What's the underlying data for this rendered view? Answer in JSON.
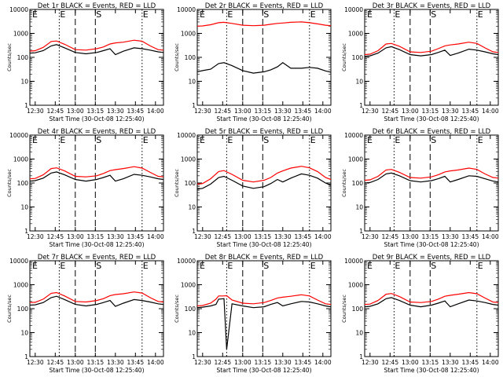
{
  "colors": {
    "events": "#000000",
    "lld": "#ff0000",
    "axes": "#000000",
    "background": "#ffffff"
  },
  "chart_data": [
    {
      "type": "line",
      "title": "Det 1r BLACK = Events, RED = LLD",
      "xlabel": "Start Time (30-Oct-08 12:25:40)",
      "ylabel": "Counts/sec",
      "yscale": "log",
      "ylim": [
        1,
        10000
      ],
      "x_ticks": [
        "12:30",
        "12:45",
        "13:00",
        "13:15",
        "13:30",
        "13:45",
        "14:00"
      ],
      "y_ticks": [
        "1",
        "10",
        "100",
        "1000",
        "10000"
      ],
      "markers": [
        {
          "label": "E",
          "style": "dotted"
        },
        {
          "label": "",
          "style": "dashed"
        },
        {
          "label": "S",
          "style": "dashed"
        },
        {
          "label": "E",
          "style": "dotted"
        }
      ],
      "x": [
        "12:26",
        "12:30",
        "12:36",
        "12:42",
        "12:46",
        "12:52",
        "13:00",
        "13:08",
        "13:16",
        "13:21",
        "13:26",
        "13:30",
        "13:36",
        "13:44",
        "13:50",
        "13:56",
        "14:02",
        "14:06"
      ],
      "series": [
        {
          "name": "BLACK = Events",
          "values": [
            150,
            155,
            190,
            300,
            340,
            250,
            160,
            140,
            160,
            190,
            230,
            130,
            180,
            250,
            230,
            200,
            170,
            160
          ]
        },
        {
          "name": "RED = LLD",
          "values": [
            180,
            190,
            260,
            460,
            480,
            350,
            210,
            200,
            230,
            270,
            360,
            400,
            430,
            520,
            470,
            300,
            210,
            200
          ]
        }
      ]
    },
    {
      "type": "line",
      "title": "Det 2r BLACK = Events, RED = LLD",
      "xlabel": "Start Time (30-Oct-08 12:25:40)",
      "ylabel": "Counts/sec",
      "yscale": "log",
      "ylim": [
        1,
        10000
      ],
      "x_ticks": [
        "12:30",
        "12:45",
        "13:00",
        "13:15",
        "13:30",
        "13:45",
        "14:00"
      ],
      "y_ticks": [
        "1",
        "10",
        "100",
        "1000",
        "10000"
      ],
      "markers": [
        {
          "label": "E",
          "style": "dotted"
        },
        {
          "label": "",
          "style": "dashed"
        },
        {
          "label": "S",
          "style": "dashed"
        },
        {
          "label": "E",
          "style": "dotted"
        }
      ],
      "x": [
        "12:26",
        "12:30",
        "12:36",
        "12:42",
        "12:46",
        "12:52",
        "13:00",
        "13:08",
        "13:16",
        "13:21",
        "13:26",
        "13:30",
        "13:36",
        "13:44",
        "13:50",
        "13:56",
        "14:02",
        "14:06"
      ],
      "series": [
        {
          "name": "BLACK = Events",
          "values": [
            25,
            28,
            32,
            55,
            60,
            45,
            28,
            22,
            25,
            30,
            40,
            60,
            35,
            35,
            38,
            35,
            27,
            24
          ]
        },
        {
          "name": "RED = LLD",
          "values": [
            2000,
            2050,
            2300,
            2800,
            2900,
            2600,
            2200,
            2100,
            2200,
            2400,
            2600,
            2700,
            2900,
            3000,
            2800,
            2500,
            2200,
            2100
          ]
        }
      ]
    },
    {
      "type": "line",
      "title": "Det 3r BLACK = Events, RED = LLD",
      "xlabel": "Start Time (30-Oct-08 12:25:40)",
      "ylabel": "Counts/sec",
      "yscale": "log",
      "ylim": [
        1,
        10000
      ],
      "x_ticks": [
        "12:30",
        "12:45",
        "13:00",
        "13:15",
        "13:30",
        "13:45",
        "14:00"
      ],
      "y_ticks": [
        "1",
        "10",
        "100",
        "1000",
        "10000"
      ],
      "markers": [
        {
          "label": "E",
          "style": "dotted"
        },
        {
          "label": "",
          "style": "dashed"
        },
        {
          "label": "S",
          "style": "dashed"
        },
        {
          "label": "E",
          "style": "dotted"
        }
      ],
      "x": [
        "12:26",
        "12:30",
        "12:36",
        "12:42",
        "12:46",
        "12:52",
        "13:00",
        "13:08",
        "13:16",
        "13:21",
        "13:26",
        "13:30",
        "13:36",
        "13:44",
        "13:50",
        "13:56",
        "14:02",
        "14:06"
      ],
      "series": [
        {
          "name": "BLACK = Events",
          "values": [
            110,
            115,
            150,
            250,
            280,
            210,
            130,
            115,
            130,
            160,
            200,
            120,
            150,
            220,
            200,
            170,
            140,
            130
          ]
        },
        {
          "name": "RED = LLD",
          "values": [
            130,
            135,
            190,
            360,
            380,
            290,
            170,
            160,
            180,
            230,
            300,
            330,
            360,
            430,
            380,
            250,
            170,
            160
          ]
        }
      ]
    },
    {
      "type": "line",
      "title": "Det 4r BLACK = Events, RED = LLD",
      "xlabel": "Start Time (30-Oct-08 12:25:40)",
      "ylabel": "Counts/sec",
      "yscale": "log",
      "ylim": [
        1,
        10000
      ],
      "x_ticks": [
        "12:30",
        "12:45",
        "13:00",
        "13:15",
        "13:30",
        "13:45",
        "14:00"
      ],
      "y_ticks": [
        "1",
        "10",
        "100",
        "1000",
        "10000"
      ],
      "markers": [
        {
          "label": "E",
          "style": "dotted"
        },
        {
          "label": "",
          "style": "dashed"
        },
        {
          "label": "S",
          "style": "dashed"
        },
        {
          "label": "E",
          "style": "dotted"
        }
      ],
      "x": [
        "12:26",
        "12:30",
        "12:36",
        "12:42",
        "12:46",
        "12:52",
        "13:00",
        "13:08",
        "13:16",
        "13:21",
        "13:26",
        "13:30",
        "13:36",
        "13:44",
        "13:50",
        "13:56",
        "14:02",
        "14:06"
      ],
      "series": [
        {
          "name": "BLACK = Events",
          "values": [
            120,
            125,
            160,
            260,
            290,
            220,
            140,
            120,
            140,
            170,
            210,
            120,
            150,
            230,
            210,
            180,
            150,
            140
          ]
        },
        {
          "name": "RED = LLD",
          "values": [
            150,
            155,
            220,
            400,
            430,
            320,
            190,
            180,
            200,
            250,
            330,
            360,
            400,
            480,
            420,
            280,
            190,
            180
          ]
        }
      ]
    },
    {
      "type": "line",
      "title": "Det 5r BLACK = Events, RED = LLD",
      "xlabel": "Start Time (30-Oct-08 12:25:40)",
      "ylabel": "Counts/sec",
      "yscale": "log",
      "ylim": [
        1,
        10000
      ],
      "x_ticks": [
        "12:30",
        "12:45",
        "13:00",
        "13:15",
        "13:30",
        "13:45",
        "14:00"
      ],
      "y_ticks": [
        "1",
        "10",
        "100",
        "1000",
        "10000"
      ],
      "markers": [
        {
          "label": "E",
          "style": "dotted"
        },
        {
          "label": "",
          "style": "dashed"
        },
        {
          "label": "S",
          "style": "dashed"
        },
        {
          "label": "E",
          "style": "dotted"
        }
      ],
      "x": [
        "12:26",
        "12:30",
        "12:36",
        "12:42",
        "12:46",
        "12:52",
        "13:00",
        "13:08",
        "13:16",
        "13:21",
        "13:26",
        "13:30",
        "13:36",
        "13:44",
        "13:50",
        "13:56",
        "14:02",
        "14:06"
      ],
      "series": [
        {
          "name": "BLACK = Events",
          "values": [
            55,
            60,
            90,
            170,
            190,
            130,
            75,
            60,
            70,
            95,
            140,
            110,
            160,
            240,
            210,
            160,
            100,
            80
          ]
        },
        {
          "name": "RED = LLD",
          "values": [
            90,
            95,
            150,
            300,
            330,
            230,
            130,
            110,
            130,
            170,
            260,
            320,
            420,
            500,
            430,
            300,
            170,
            140
          ]
        }
      ]
    },
    {
      "type": "line",
      "title": "Det 6r BLACK = Events, RED = LLD",
      "xlabel": "Start Time (30-Oct-08 12:25:40)",
      "ylabel": "Counts/sec",
      "yscale": "log",
      "ylim": [
        1,
        10000
      ],
      "x_ticks": [
        "12:30",
        "12:45",
        "13:00",
        "13:15",
        "13:30",
        "13:45",
        "14:00"
      ],
      "y_ticks": [
        "1",
        "10",
        "100",
        "1000",
        "10000"
      ],
      "markers": [
        {
          "label": "E",
          "style": "dotted"
        },
        {
          "label": "",
          "style": "dashed"
        },
        {
          "label": "S",
          "style": "dashed"
        },
        {
          "label": "E",
          "style": "dotted"
        }
      ],
      "x": [
        "12:26",
        "12:30",
        "12:36",
        "12:42",
        "12:46",
        "12:52",
        "13:00",
        "13:08",
        "13:16",
        "13:21",
        "13:26",
        "13:30",
        "13:36",
        "13:44",
        "13:50",
        "13:56",
        "14:02",
        "14:06"
      ],
      "series": [
        {
          "name": "BLACK = Events",
          "values": [
            100,
            105,
            140,
            240,
            260,
            200,
            125,
            110,
            125,
            150,
            190,
            110,
            140,
            200,
            190,
            150,
            120,
            110
          ]
        },
        {
          "name": "RED = LLD",
          "values": [
            130,
            135,
            190,
            350,
            370,
            280,
            170,
            160,
            180,
            220,
            290,
            320,
            350,
            420,
            370,
            240,
            170,
            160
          ]
        }
      ]
    },
    {
      "type": "line",
      "title": "Det 7r BLACK = Events, RED = LLD",
      "xlabel": "Start Time (30-Oct-08 12:25:40)",
      "ylabel": "Counts/sec",
      "yscale": "log",
      "ylim": [
        1,
        10000
      ],
      "x_ticks": [
        "12:30",
        "12:45",
        "13:00",
        "13:15",
        "13:30",
        "13:45",
        "14:00"
      ],
      "y_ticks": [
        "1",
        "10",
        "100",
        "1000",
        "10000"
      ],
      "markers": [
        {
          "label": "E",
          "style": "dotted"
        },
        {
          "label": "",
          "style": "dashed"
        },
        {
          "label": "S",
          "style": "dashed"
        },
        {
          "label": "E",
          "style": "dotted"
        }
      ],
      "x": [
        "12:26",
        "12:30",
        "12:36",
        "12:42",
        "12:46",
        "12:52",
        "13:00",
        "13:08",
        "13:16",
        "13:21",
        "13:26",
        "13:30",
        "13:36",
        "13:44",
        "13:50",
        "13:56",
        "14:02",
        "14:06"
      ],
      "series": [
        {
          "name": "BLACK = Events",
          "values": [
            140,
            145,
            180,
            290,
            330,
            240,
            150,
            130,
            150,
            180,
            220,
            125,
            170,
            240,
            220,
            190,
            160,
            150
          ]
        },
        {
          "name": "RED = LLD",
          "values": [
            180,
            185,
            250,
            440,
            470,
            340,
            200,
            190,
            220,
            260,
            350,
            390,
            420,
            500,
            450,
            290,
            200,
            190
          ]
        }
      ]
    },
    {
      "type": "line",
      "title": "Det 8r BLACK = Events, RED = LLD",
      "xlabel": "Start Time (30-Oct-08 12:25:40)",
      "ylabel": "Counts/sec",
      "yscale": "log",
      "ylim": [
        1,
        10000
      ],
      "x_ticks": [
        "12:30",
        "12:45",
        "13:00",
        "13:15",
        "13:30",
        "13:45",
        "14:00"
      ],
      "y_ticks": [
        "1",
        "10",
        "100",
        "1000",
        "10000"
      ],
      "markers": [
        {
          "label": "E",
          "style": "dotted"
        },
        {
          "label": "",
          "style": "dashed"
        },
        {
          "label": "S",
          "style": "dashed"
        },
        {
          "label": "E",
          "style": "dotted"
        }
      ],
      "x": [
        "12:26",
        "12:30",
        "12:36",
        "12:40",
        "12:42",
        "12:46",
        "12:48",
        "12:52",
        "13:00",
        "13:08",
        "13:16",
        "13:21",
        "13:26",
        "13:30",
        "13:36",
        "13:44",
        "13:50",
        "13:56",
        "14:02",
        "14:06"
      ],
      "series": [
        {
          "name": "BLACK = Events",
          "values": [
            110,
            115,
            130,
            150,
            250,
            260,
            2,
            160,
            130,
            110,
            120,
            150,
            180,
            130,
            160,
            200,
            190,
            160,
            130,
            120
          ]
        },
        {
          "name": "RED = LLD",
          "values": [
            130,
            135,
            170,
            250,
            340,
            340,
            350,
            230,
            170,
            160,
            180,
            220,
            280,
            300,
            330,
            380,
            340,
            230,
            160,
            150
          ]
        }
      ]
    },
    {
      "type": "line",
      "title": "Det 9r BLACK = Events, RED = LLD",
      "xlabel": "Start Time (30-Oct-08 12:25:40)",
      "ylabel": "Counts/sec",
      "yscale": "log",
      "ylim": [
        1,
        10000
      ],
      "x_ticks": [
        "12:30",
        "12:45",
        "13:00",
        "13:15",
        "13:30",
        "13:45",
        "14:00"
      ],
      "y_ticks": [
        "1",
        "10",
        "100",
        "1000",
        "10000"
      ],
      "markers": [
        {
          "label": "E",
          "style": "dotted"
        },
        {
          "label": "",
          "style": "dashed"
        },
        {
          "label": "S",
          "style": "dashed"
        },
        {
          "label": "E",
          "style": "dotted"
        }
      ],
      "x": [
        "12:26",
        "12:30",
        "12:36",
        "12:42",
        "12:46",
        "12:52",
        "13:00",
        "13:08",
        "13:16",
        "13:21",
        "13:26",
        "13:30",
        "13:36",
        "13:44",
        "13:50",
        "13:56",
        "14:02",
        "14:06"
      ],
      "series": [
        {
          "name": "BLACK = Events",
          "values": [
            120,
            125,
            160,
            260,
            290,
            220,
            140,
            120,
            140,
            170,
            210,
            120,
            160,
            230,
            210,
            180,
            150,
            140
          ]
        },
        {
          "name": "RED = LLD",
          "values": [
            150,
            155,
            220,
            400,
            430,
            320,
            190,
            180,
            200,
            250,
            330,
            360,
            400,
            470,
            420,
            280,
            190,
            180
          ]
        }
      ]
    }
  ]
}
